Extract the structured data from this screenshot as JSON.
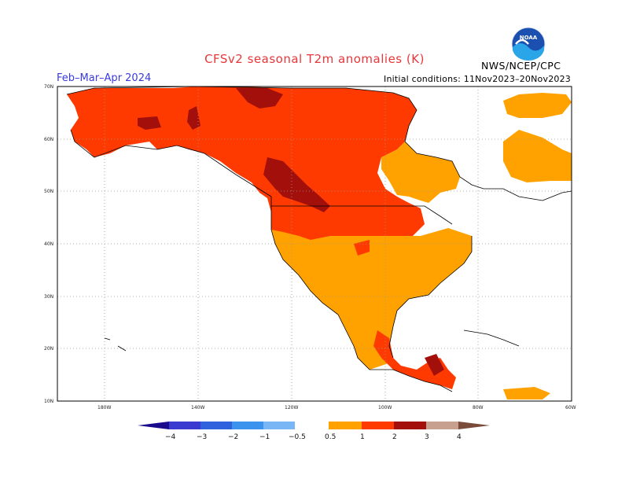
{
  "header": {
    "title": "CFSv2  seasonal  T2m  anomalies  (K)",
    "period": "Feb–Mar–Apr 2024",
    "initial_conditions": "Initial conditions: 11Nov2023–20Nov2023",
    "agency": "NWS/NCEP/CPC",
    "logo_text": "NOAA"
  },
  "axes": {
    "lat_labels": [
      "70N",
      "60N",
      "50N",
      "40N",
      "30N",
      "20N",
      "10N"
    ],
    "lon_labels": [
      "180W",
      "140W",
      "120W",
      "100W",
      "80W",
      "60W"
    ]
  },
  "colorbar": {
    "tick_labels": [
      "−4",
      "−3",
      "−2",
      "−1",
      "−0.5",
      "0.5",
      "1",
      "2",
      "3",
      "4"
    ],
    "colors": {
      "lt_neg4": "#1a0a8c",
      "neg4_neg3": "#3b3ad0",
      "neg3_neg2": "#2f62dc",
      "neg2_neg1": "#3b93ee",
      "neg1_neg05": "#79b6f6",
      "neutral": "#ffffff",
      "p05_1": "#ffa200",
      "p1_2": "#ff3a00",
      "p2_3": "#a3100c",
      "p3_4": "#c8a090",
      "gt4": "#7a4a3a"
    }
  },
  "map_colors": {
    "c05_1": "#ffa200",
    "c1_2": "#ff3a00",
    "c2_3": "#a3100c",
    "land_neutral": "#ffffff",
    "coast": "#000000",
    "grid": "#9a9a9a"
  }
}
